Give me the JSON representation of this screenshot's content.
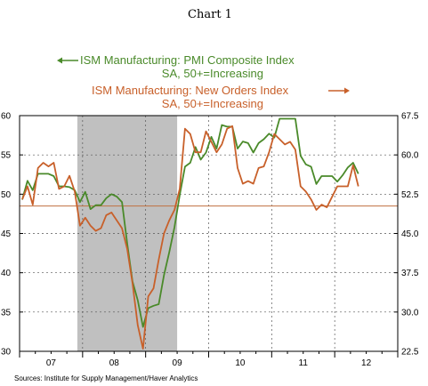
{
  "page": {
    "title": "Chart 1",
    "source": "Sources: Institute for Supply Management/Haver Analytics"
  },
  "colors": {
    "pmi": "#4a8a2a",
    "new_orders": "#c8602a",
    "recession": "#c0c0c0",
    "reference_line": "#c07040",
    "grid": "#555555"
  },
  "legend": {
    "pmi": {
      "line1": "ISM Manufacturing: PMI Composite Index",
      "line2": "SA, 50+=Increasing",
      "axis": "left"
    },
    "new_orders": {
      "line1": "ISM Manufacturing: New Orders Index",
      "line2": "SA, 50+=Increasing",
      "axis": "right"
    }
  },
  "chart_data": {
    "type": "line",
    "x_labels": [
      "07",
      "08",
      "09",
      "10",
      "11",
      "12"
    ],
    "x_range": [
      "2007-01",
      "2012-12"
    ],
    "left_axis": {
      "ticks": [
        "60",
        "55",
        "50",
        "45",
        "40",
        "35",
        "30"
      ],
      "ylim": [
        30,
        60
      ]
    },
    "right_axis": {
      "ticks": [
        "67.5",
        "60.0",
        "52.5",
        "45.0",
        "37.5",
        "30.0",
        "22.5"
      ],
      "ylim": [
        22.5,
        67.5
      ]
    },
    "shaded_periods": [
      {
        "start": "2007-12",
        "end": "2009-06"
      }
    ],
    "reference_line": {
      "axis": "left",
      "value": 48.5
    },
    "series": [
      {
        "name": "ISM Manufacturing: PMI Composite Index",
        "axis": "left",
        "points": [
          [
            "2007-01",
            49.3
          ],
          [
            "2007-02",
            51.7
          ],
          [
            "2007-03",
            50.5
          ],
          [
            "2007-04",
            52.6
          ],
          [
            "2007-05",
            52.6
          ],
          [
            "2007-06",
            52.6
          ],
          [
            "2007-07",
            52.3
          ],
          [
            "2007-08",
            51.0
          ],
          [
            "2007-09",
            51.0
          ],
          [
            "2007-10",
            50.9
          ],
          [
            "2007-11",
            50.5
          ],
          [
            "2007-12",
            49.0
          ],
          [
            "2008-01",
            50.3
          ],
          [
            "2008-02",
            48.1
          ],
          [
            "2008-03",
            48.6
          ],
          [
            "2008-04",
            48.6
          ],
          [
            "2008-05",
            49.5
          ],
          [
            "2008-06",
            50.0
          ],
          [
            "2008-07",
            49.7
          ],
          [
            "2008-08",
            49.0
          ],
          [
            "2008-09",
            43.7
          ],
          [
            "2008-10",
            38.9
          ],
          [
            "2008-11",
            36.5
          ],
          [
            "2008-12",
            33.1
          ],
          [
            "2009-01",
            35.5
          ],
          [
            "2009-02",
            35.8
          ],
          [
            "2009-03",
            36.0
          ],
          [
            "2009-04",
            39.7
          ],
          [
            "2009-05",
            42.6
          ],
          [
            "2009-06",
            45.8
          ],
          [
            "2009-07",
            49.9
          ],
          [
            "2009-08",
            53.5
          ],
          [
            "2009-09",
            54.0
          ],
          [
            "2009-10",
            56.0
          ],
          [
            "2009-11",
            54.4
          ],
          [
            "2009-12",
            55.3
          ],
          [
            "2010-01",
            57.3
          ],
          [
            "2010-02",
            55.8
          ],
          [
            "2010-03",
            58.8
          ],
          [
            "2010-04",
            58.6
          ],
          [
            "2010-05",
            58.6
          ],
          [
            "2010-06",
            55.8
          ],
          [
            "2010-07",
            56.7
          ],
          [
            "2010-08",
            56.5
          ],
          [
            "2010-09",
            55.3
          ],
          [
            "2010-10",
            56.5
          ],
          [
            "2010-11",
            57.0
          ],
          [
            "2010-12",
            57.7
          ],
          [
            "2011-01",
            57.2
          ],
          [
            "2011-02",
            59.6
          ],
          [
            "2011-03",
            59.6
          ],
          [
            "2011-04",
            59.6
          ],
          [
            "2011-05",
            59.6
          ],
          [
            "2011-06",
            54.9
          ],
          [
            "2011-07",
            53.8
          ],
          [
            "2011-08",
            53.5
          ],
          [
            "2011-09",
            51.3
          ],
          [
            "2011-10",
            52.3
          ],
          [
            "2011-11",
            52.3
          ],
          [
            "2011-12",
            52.3
          ],
          [
            "2012-01",
            51.6
          ],
          [
            "2012-02",
            52.4
          ],
          [
            "2012-03",
            53.4
          ],
          [
            "2012-04",
            54.0
          ],
          [
            "2012-05",
            52.6
          ]
        ]
      },
      {
        "name": "ISM Manufacturing: New Orders Index",
        "axis": "right",
        "points": [
          [
            "2007-01",
            51.5
          ],
          [
            "2007-02",
            54.0
          ],
          [
            "2007-03",
            50.5
          ],
          [
            "2007-04",
            57.5
          ],
          [
            "2007-05",
            58.5
          ],
          [
            "2007-06",
            57.8
          ],
          [
            "2007-07",
            58.5
          ],
          [
            "2007-08",
            53.5
          ],
          [
            "2007-09",
            54.0
          ],
          [
            "2007-10",
            56.0
          ],
          [
            "2007-11",
            53.0
          ],
          [
            "2007-12",
            46.5
          ],
          [
            "2008-01",
            48.0
          ],
          [
            "2008-02",
            46.5
          ],
          [
            "2008-03",
            45.5
          ],
          [
            "2008-04",
            46.0
          ],
          [
            "2008-05",
            48.5
          ],
          [
            "2008-06",
            49.0
          ],
          [
            "2008-07",
            47.5
          ],
          [
            "2008-08",
            46.0
          ],
          [
            "2008-09",
            42.0
          ],
          [
            "2008-10",
            35.5
          ],
          [
            "2008-11",
            27.5
          ],
          [
            "2008-12",
            23.0
          ],
          [
            "2009-01",
            33.0
          ],
          [
            "2009-02",
            34.5
          ],
          [
            "2009-03",
            40.0
          ],
          [
            "2009-04",
            45.0
          ],
          [
            "2009-05",
            47.5
          ],
          [
            "2009-06",
            49.5
          ],
          [
            "2009-07",
            53.5
          ],
          [
            "2009-08",
            65.0
          ],
          [
            "2009-09",
            64.0
          ],
          [
            "2009-10",
            60.5
          ],
          [
            "2009-11",
            60.5
          ],
          [
            "2009-12",
            64.5
          ],
          [
            "2010-01",
            62.5
          ],
          [
            "2010-02",
            60.5
          ],
          [
            "2010-03",
            62.0
          ],
          [
            "2010-04",
            65.0
          ],
          [
            "2010-05",
            65.5
          ],
          [
            "2010-06",
            57.5
          ],
          [
            "2010-07",
            54.5
          ],
          [
            "2010-08",
            55.0
          ],
          [
            "2010-09",
            54.5
          ],
          [
            "2010-10",
            57.5
          ],
          [
            "2010-11",
            57.8
          ],
          [
            "2010-12",
            60.5
          ],
          [
            "2011-01",
            64.0
          ],
          [
            "2011-02",
            63.0
          ],
          [
            "2011-03",
            62.0
          ],
          [
            "2011-04",
            62.5
          ],
          [
            "2011-05",
            61.0
          ],
          [
            "2011-06",
            54.0
          ],
          [
            "2011-07",
            53.0
          ],
          [
            "2011-08",
            51.5
          ],
          [
            "2011-09",
            49.5
          ],
          [
            "2011-10",
            50.5
          ],
          [
            "2011-11",
            50.0
          ],
          [
            "2011-12",
            52.0
          ],
          [
            "2012-01",
            54.0
          ],
          [
            "2012-02",
            54.0
          ],
          [
            "2012-03",
            54.0
          ],
          [
            "2012-04",
            58.0
          ],
          [
            "2012-05",
            54.0
          ]
        ]
      }
    ]
  }
}
